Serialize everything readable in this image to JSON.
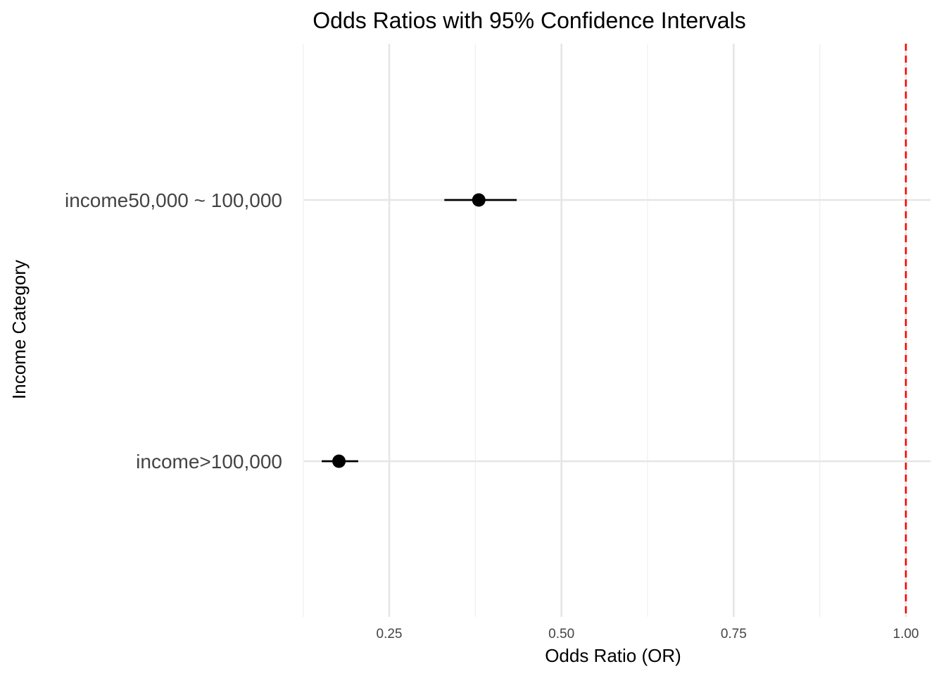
{
  "chart_data": {
    "type": "scatter",
    "subtype": "forest-plot",
    "title": "Odds Ratios with 95% Confidence Intervals",
    "xlabel": "Odds Ratio (OR)",
    "ylabel": "Income Category",
    "categories": [
      "income50,000 ~ 100,000",
      "income>100,000"
    ],
    "series": [
      {
        "points": [
          {
            "category": "income50,000 ~ 100,000",
            "or": 0.38,
            "ci_low": 0.33,
            "ci_high": 0.435
          },
          {
            "category": "income>100,000",
            "or": 0.177,
            "ci_low": 0.152,
            "ci_high": 0.205
          }
        ],
        "color": "#000000"
      }
    ],
    "xlim": [
      0.125,
      1.0
    ],
    "x_ticks": [
      0.25,
      0.5,
      0.75,
      1.0
    ],
    "x_tick_labels": [
      "0.25",
      "0.50",
      "0.75",
      "1.00"
    ],
    "x_minor_ticks": [
      0.125,
      0.375,
      0.625,
      0.875
    ],
    "reference_line": {
      "x": 1.0,
      "color": "#ff0000",
      "style": "dashed"
    },
    "grid": true,
    "legend": "none"
  }
}
